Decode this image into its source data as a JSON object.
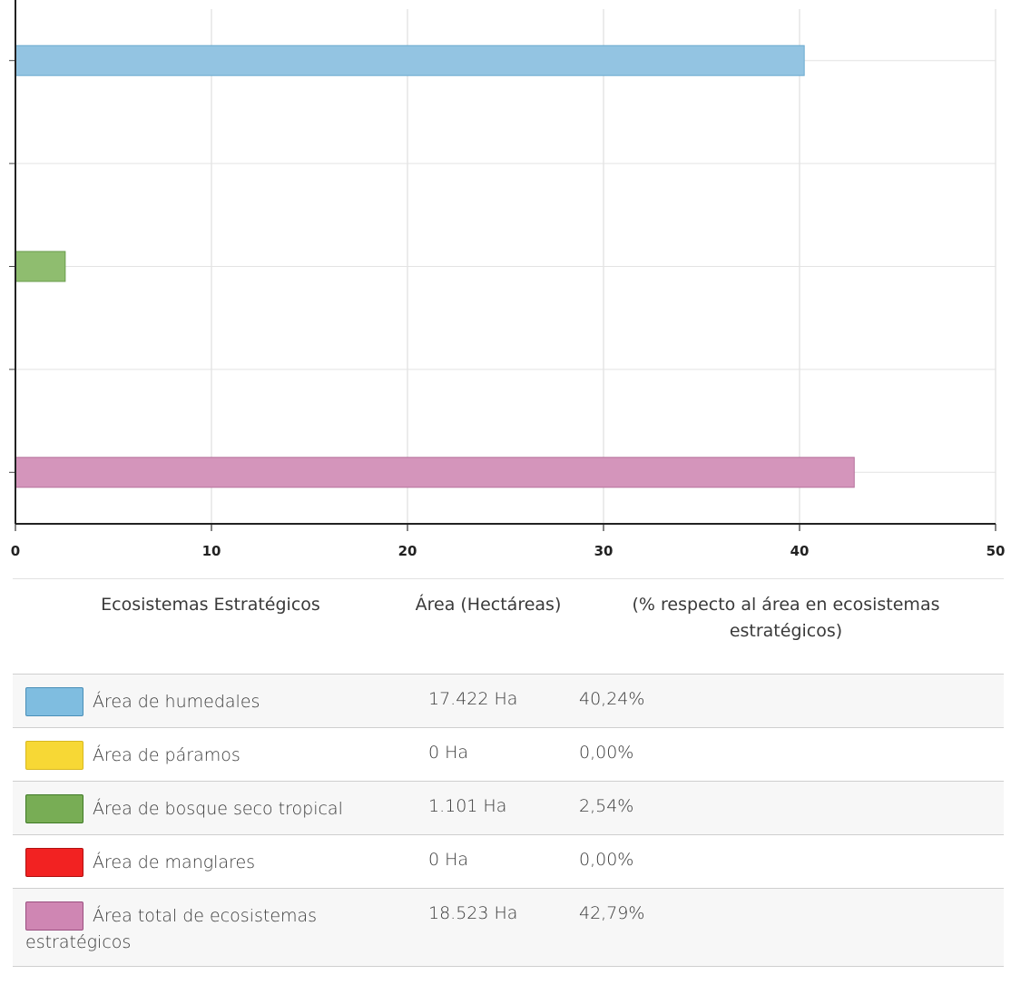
{
  "chart_data": {
    "type": "bar",
    "orientation": "horizontal",
    "categories": [
      "Área de humedales",
      "Área de páramos",
      "Área de bosque seco tropical",
      "Área de manglares",
      "Área total de ecosistemas estratégicos"
    ],
    "values": [
      40.24,
      0.0,
      2.54,
      0.0,
      42.79
    ],
    "colors": [
      "#93c4e2",
      "#f5d63a",
      "#8fbd6f",
      "#ee2a2a",
      "#d495bb"
    ],
    "xlim": [
      0,
      50
    ],
    "xticks": [
      "0",
      "10",
      "20",
      "30",
      "40",
      "50"
    ],
    "grid": true,
    "title": "",
    "xlabel": "",
    "ylabel": ""
  },
  "table": {
    "headers": [
      "Ecosistemas Estratégicos",
      "Área (Hectáreas)",
      "(% respecto al área en ecosistemas estratégicos)"
    ],
    "rows": [
      {
        "name": "Área de humedales",
        "area": "17.422 Ha",
        "pct": "40,24%",
        "swatch_color": "#7fbde0",
        "swatch_border": "#4a8fb8"
      },
      {
        "name": "Área de páramos",
        "area": "0 Ha",
        "pct": "0,00%",
        "swatch_color": "#f7d835",
        "swatch_border": "#d8b820"
      },
      {
        "name": "Área de bosque seco tropical",
        "area": "1.101 Ha",
        "pct": "2,54%",
        "swatch_color": "#78ad55",
        "swatch_border": "#3f7a26"
      },
      {
        "name": "Área de manglares",
        "area": "0 Ha",
        "pct": "0,00%",
        "swatch_color": "#f22222",
        "swatch_border": "#b01010"
      },
      {
        "name": "Área total de ecosistemas estratégicos",
        "area": "18.523 Ha",
        "pct": "42,79%",
        "swatch_color": "#cf86b3",
        "swatch_border": "#9a4f80"
      }
    ]
  }
}
